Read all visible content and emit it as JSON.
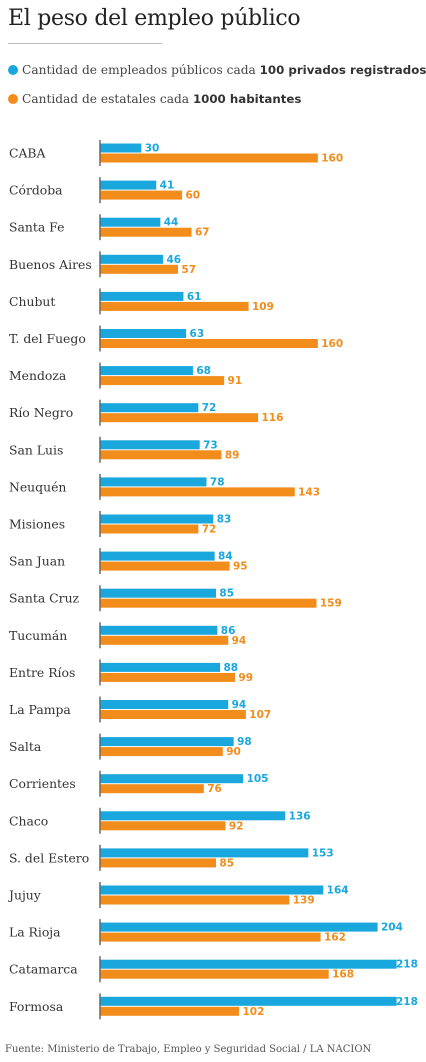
{
  "title": "El peso del empleo público",
  "legend": [
    {
      "prefix": "Cantidad de empleados públicos cada ",
      "bold": "100 privados registrados",
      "color": "#1aa7dd"
    },
    {
      "prefix": "Cantidad de estatales cada ",
      "bold": "1000 habitantes",
      "color": "#f28c1a"
    }
  ],
  "source": "Fuente: Ministerio de Trabajo, Empleo y Seguridad Social / LA NACION",
  "chart_data": {
    "type": "bar",
    "orientation": "horizontal",
    "categories": [
      "CABA",
      "Córdoba",
      "Santa Fe",
      "Buenos Aires",
      "Chubut",
      "T. del Fuego",
      "Mendoza",
      "Río Negro",
      "San Luis",
      "Neuquén",
      "Misiones",
      "San Juan",
      "Santa Cruz",
      "Tucumán",
      "Entre Ríos",
      "La Pampa",
      "Salta",
      "Corrientes",
      "Chaco",
      "S. del Estero",
      "Jujuy",
      "La Rioja",
      "Catamarca",
      "Formosa"
    ],
    "series": [
      {
        "name": "Cantidad de empleados públicos cada 100 privados registrados",
        "color": "#1aa7dd",
        "values": [
          30,
          41,
          44,
          46,
          61,
          63,
          68,
          72,
          73,
          78,
          83,
          84,
          85,
          86,
          88,
          94,
          98,
          105,
          136,
          153,
          164,
          204,
          218,
          218
        ]
      },
      {
        "name": "Cantidad de estatales cada 1000 habitantes",
        "color": "#f28c1a",
        "values": [
          160,
          60,
          67,
          57,
          109,
          160,
          91,
          116,
          89,
          143,
          72,
          95,
          159,
          94,
          99,
          107,
          90,
          76,
          92,
          85,
          139,
          162,
          168,
          102
        ]
      }
    ],
    "xlim": [
      0,
      218
    ],
    "grid": false,
    "legend_position": "top"
  }
}
